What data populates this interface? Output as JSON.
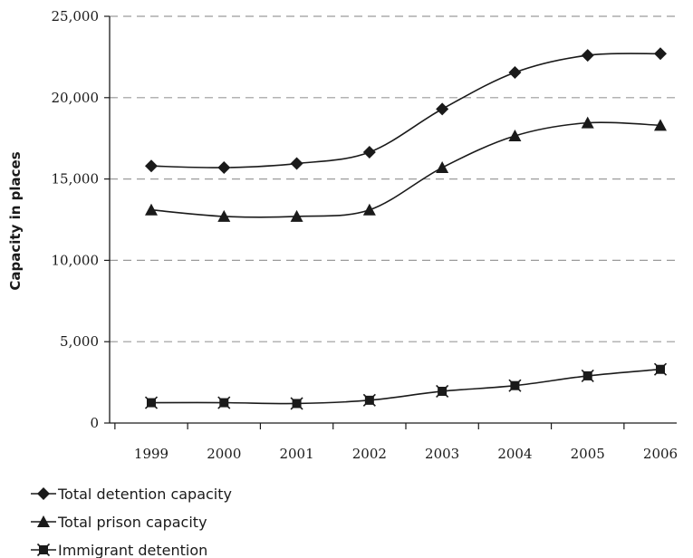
{
  "chart_data": {
    "type": "line",
    "title": "",
    "xlabel": "",
    "ylabel": "Capacity in places",
    "categories": [
      "1999",
      "2000",
      "2001",
      "2002",
      "2003",
      "2004",
      "2005",
      "2006"
    ],
    "ylim": [
      0,
      25000
    ],
    "yticks": [
      0,
      5000,
      10000,
      15000,
      20000,
      25000
    ],
    "ytick_labels": [
      "0",
      "5,000",
      "10,000",
      "15,000",
      "20,000",
      "25,000"
    ],
    "grid": "horizontal dashed",
    "legend_position": "bottom-left",
    "series": [
      {
        "name": "Total detention capacity",
        "marker": "diamond",
        "values": [
          15800,
          15700,
          15950,
          16650,
          19300,
          21550,
          22600,
          22700
        ]
      },
      {
        "name": "Total prison capacity",
        "marker": "triangle",
        "values": [
          13100,
          12700,
          12700,
          13100,
          15700,
          17650,
          18450,
          18300
        ]
      },
      {
        "name": "Immigrant detention",
        "marker": "x-square",
        "values": [
          1250,
          1250,
          1200,
          1400,
          1950,
          2300,
          2900,
          3300
        ]
      }
    ],
    "colors": {
      "line": "#1a1a1a",
      "grid": "#9a9a9a",
      "axis": "#1a1a1a"
    }
  }
}
